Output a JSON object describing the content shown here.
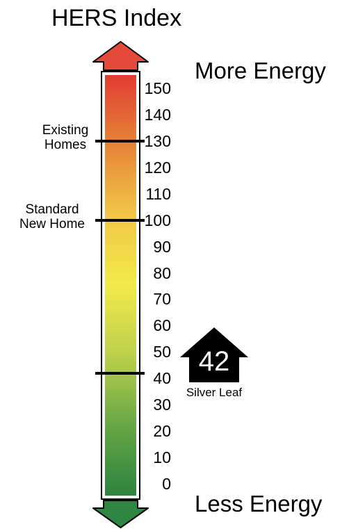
{
  "title": "HERS Index",
  "more_energy": "More Energy",
  "less_energy": "Less Energy",
  "scale": {
    "min": 0,
    "max": 150,
    "ticks": [
      "150",
      "140",
      "130",
      "120",
      "110",
      "100",
      "90",
      "80",
      "70",
      "60",
      "50",
      "40",
      "30",
      "20",
      "10",
      "0"
    ],
    "gradient_colors": [
      "#e03c32",
      "#e68438",
      "#f0c646",
      "#f2ea4a",
      "#bcd04c",
      "#66a645",
      "#2e8340"
    ]
  },
  "references": [
    {
      "value": 130,
      "label_line1": "Existing",
      "label_line2": "Homes"
    },
    {
      "value": 100,
      "label_line1": "Standard",
      "label_line2": "New Home"
    }
  ],
  "score": {
    "value": 42,
    "value_text": "42",
    "level": "Silver Leaf"
  },
  "colors": {
    "arrow_up": "#e44a3a",
    "arrow_down": "#2f8542",
    "score_badge": "#000000"
  }
}
